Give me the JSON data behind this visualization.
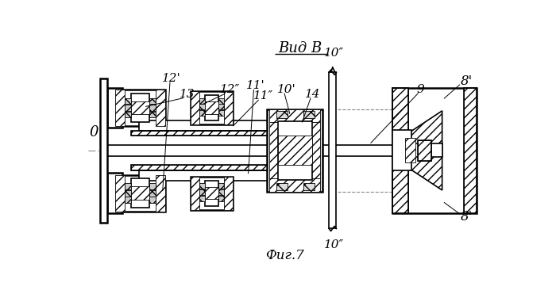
{
  "title": "Вид В",
  "fig_label": "Фиг.7",
  "bg_color": "#ffffff",
  "line_color": "#000000",
  "centerline_color": "#888888"
}
